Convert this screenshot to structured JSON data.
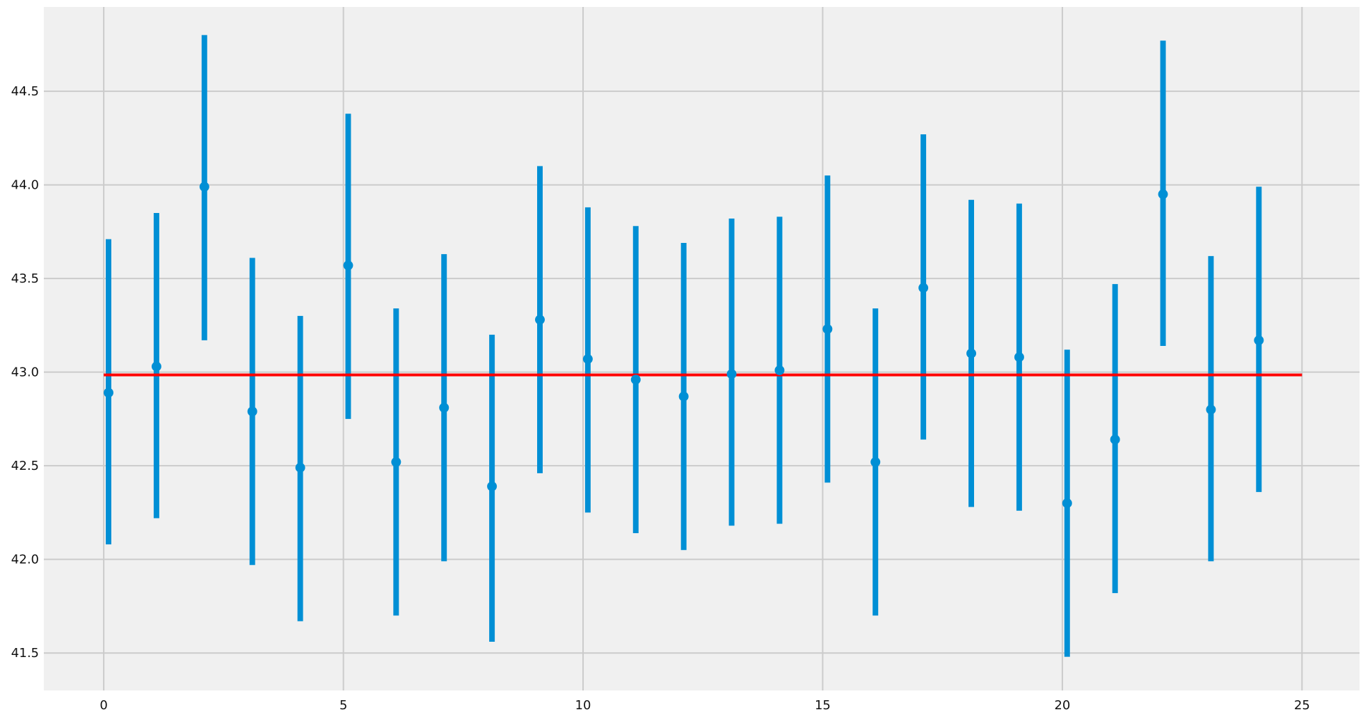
{
  "chart_data": {
    "type": "errorbar",
    "title": "",
    "xlabel": "",
    "ylabel": "",
    "xlim": [
      -1.25,
      26.2
    ],
    "ylim": [
      41.3,
      44.95
    ],
    "xticks": [
      0,
      5,
      10,
      15,
      20,
      25
    ],
    "yticks": [
      41.5,
      42.0,
      42.5,
      43.0,
      43.5,
      44.0,
      44.5
    ],
    "xtick_labels": [
      "0",
      "5",
      "10",
      "15",
      "20",
      "25"
    ],
    "ytick_labels": [
      "41.5",
      "42.0",
      "42.5",
      "43.0",
      "43.5",
      "44.0",
      "44.5"
    ],
    "grid": true,
    "series": [
      {
        "x": [
          0.1,
          1.1,
          2.1,
          3.1,
          4.1,
          5.1,
          6.1,
          7.1,
          8.1,
          9.1,
          10.1,
          11.1,
          12.1,
          13.1,
          14.1,
          15.1,
          16.1,
          17.1,
          18.1,
          19.1,
          20.1,
          21.1,
          22.1,
          23.1,
          24.1
        ],
        "y": [
          42.89,
          43.03,
          43.99,
          42.79,
          42.49,
          43.57,
          42.52,
          42.81,
          42.39,
          43.28,
          43.07,
          42.96,
          42.87,
          42.99,
          43.01,
          43.23,
          42.52,
          43.45,
          43.1,
          43.08,
          42.3,
          42.64,
          43.95,
          42.8,
          43.17
        ],
        "lower": [
          42.08,
          42.22,
          43.17,
          41.97,
          41.67,
          42.75,
          41.7,
          41.99,
          41.56,
          42.46,
          42.25,
          42.14,
          42.05,
          42.18,
          42.19,
          42.41,
          41.7,
          42.64,
          42.28,
          42.26,
          41.48,
          41.82,
          43.14,
          41.99,
          42.36
        ],
        "upper": [
          43.71,
          43.85,
          44.8,
          43.61,
          43.3,
          44.38,
          43.34,
          43.63,
          43.2,
          44.1,
          43.88,
          43.78,
          43.69,
          43.82,
          43.83,
          44.05,
          43.34,
          44.27,
          43.92,
          43.9,
          43.12,
          43.47,
          44.77,
          43.62,
          43.99
        ],
        "color": "#008fd5"
      }
    ],
    "reference_line": {
      "y": 42.985,
      "x_start": 0,
      "x_end": 25,
      "color": "#ff0000"
    },
    "style": {
      "plot_background": "#f0f0f0",
      "grid_color": "#cbcbcb",
      "figure_background": "#ffffff"
    }
  }
}
